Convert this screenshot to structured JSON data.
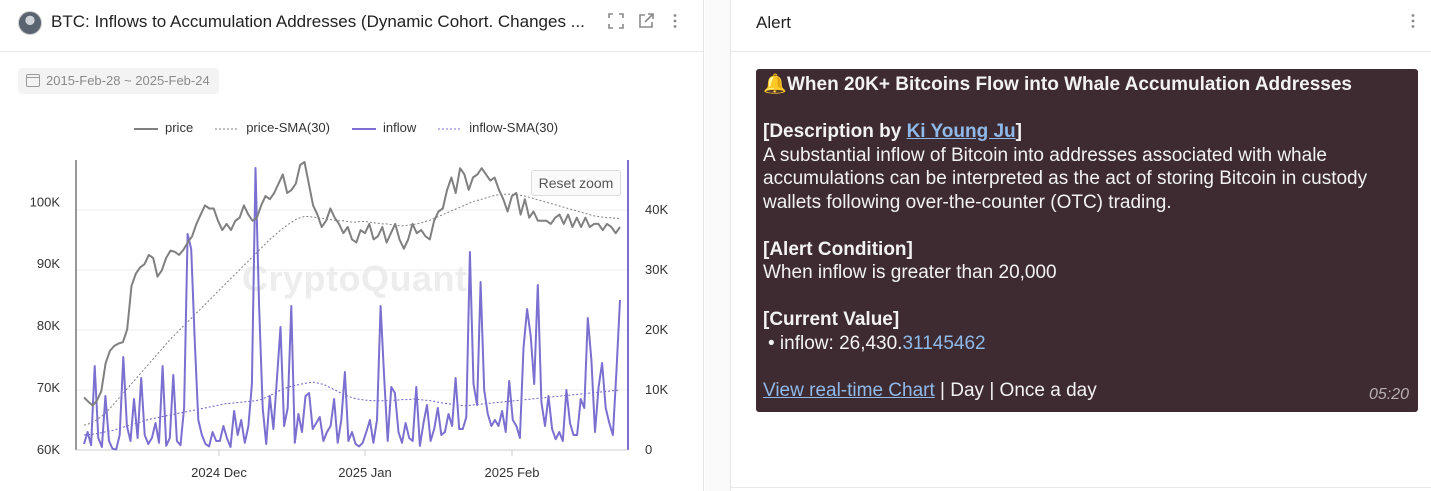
{
  "left_panel": {
    "title": "BTC: Inflows to Accumulation Addresses (Dynamic Cohort. Changes ...",
    "icons": [
      "expand-icon",
      "external-link-icon",
      "more-vertical-icon"
    ],
    "date_range": "2015-Feb-28 ~ 2025-Feb-24",
    "reset_zoom": "Reset zoom",
    "watermark": "CryptoQuant"
  },
  "right_panel": {
    "title": "Alert",
    "message": {
      "heading": "When 20K+ Bitcoins Flow into Whale Accumulation Addresses",
      "desc_prefix": "[Description by ",
      "desc_author": "Ki Young Ju",
      "desc_suffix": "]",
      "desc_lines": [
        "A substantial inflow of Bitcoin into addresses associated with whale",
        "accumulations can be interpreted as the act of storing Bitcoin in custody",
        "wallets following over-the-counter (OTC) trading."
      ],
      "condition_label": "[Alert Condition]",
      "condition_text": "When inflow is greater than 20,000",
      "current_label": "[Current Value]",
      "current_bullet": "• inflow: 26,430.",
      "current_decimals": "31145462",
      "chart_link": "View real-time Chart",
      "schedule": " | Day | Once a day",
      "time": "05:20"
    }
  },
  "colors": {
    "price": "#808080",
    "inflow": "#7b6fd0",
    "alert_bg": "#3e2b32",
    "link": "#8fb9e8"
  },
  "chart_data": {
    "type": "line",
    "title": "",
    "legend": [
      "price",
      "price-SMA(30)",
      "inflow",
      "inflow-SMA(30)"
    ],
    "legend_position": "top",
    "x_ticks": [
      "2024 Dec",
      "2025 Jan",
      "2025 Feb"
    ],
    "y_left": {
      "ticks": [
        "60K",
        "70K",
        "80K",
        "90K",
        "100K"
      ],
      "range": [
        60000,
        106500
      ]
    },
    "y_right": {
      "ticks": [
        "0",
        "10K",
        "20K",
        "30K",
        "40K"
      ],
      "range": [
        0,
        48000
      ]
    },
    "series": [
      {
        "name": "price",
        "axis": "left",
        "values": [
          68500,
          67800,
          67200,
          68000,
          69500,
          74000,
          76000,
          76800,
          77200,
          77400,
          79500,
          86500,
          88500,
          89500,
          90000,
          91500,
          91000,
          88000,
          89000,
          91000,
          92200,
          92000,
          91500,
          92300,
          93500,
          94500,
          96500,
          98000,
          99500,
          99000,
          99000,
          97000,
          95500,
          96500,
          95500,
          97000,
          97500,
          99500,
          98000,
          97000,
          97500,
          99500,
          101000,
          100500,
          101500,
          103000,
          104500,
          101500,
          102000,
          103000,
          106000,
          106500,
          103000,
          99500,
          98000,
          96000,
          97000,
          99000,
          97500,
          96500,
          95000,
          96000,
          94000,
          93500,
          95500,
          95000,
          96500,
          94000,
          94500,
          96000,
          93500,
          95000,
          96500,
          94000,
          92500,
          94000,
          96500,
          95000,
          95500,
          94500,
          94000,
          97000,
          98500,
          99000,
          102000,
          104000,
          101500,
          105500,
          104500,
          102000,
          104000,
          104500,
          105500,
          104500,
          103500,
          104000,
          102000,
          100500,
          98500,
          101000,
          101500,
          98000,
          100500,
          97500,
          98500,
          97000,
          97000,
          97000,
          96500,
          97500,
          98000,
          96500,
          98000,
          96000,
          97500,
          96000,
          97500,
          96000,
          96500,
          96500,
          95500,
          96500,
          96000,
          95000,
          96000
        ]
      },
      {
        "name": "price-SMA(30)",
        "axis": "left",
        "values": [
          64000,
          64200,
          64500,
          64900,
          65400,
          66000,
          66700,
          67500,
          68300,
          69100,
          69900,
          70700,
          71500,
          72300,
          73100,
          73900,
          74700,
          75500,
          76300,
          77100,
          77900,
          78600,
          79300,
          80000,
          80700,
          81400,
          82100,
          82800,
          83500,
          84200,
          84900,
          85600,
          86300,
          87000,
          87700,
          88400,
          89100,
          89800,
          90500,
          91200,
          91900,
          92600,
          93300,
          94000,
          94600,
          95200,
          95800,
          96300,
          96800,
          97200,
          97500,
          97700,
          97700,
          97600,
          97500,
          97400,
          97300,
          97200,
          97100,
          97000,
          97000,
          96900,
          96800,
          96800,
          96900,
          96900,
          96800,
          96700,
          96600,
          96500,
          96500,
          96400,
          96300,
          96200,
          96200,
          96300,
          96400,
          96500,
          96700,
          96900,
          97100,
          97400,
          97700,
          98000,
          98300,
          98600,
          98900,
          99200,
          99500,
          99800,
          100100,
          100300,
          100500,
          100700,
          100900,
          101100,
          101200,
          101300,
          101300,
          101300,
          101200,
          101100,
          101000,
          100800,
          100600,
          100400,
          100200,
          100000,
          99800,
          99600,
          99400,
          99200,
          99000,
          98800,
          98600,
          98400,
          98200,
          98000,
          97800,
          97700,
          97600,
          97500,
          97500,
          97400,
          97400
        ]
      },
      {
        "name": "inflow",
        "axis": "right",
        "values": [
          1000,
          3000,
          800,
          14000,
          2000,
          500,
          9000,
          1500,
          200,
          100,
          2500,
          15500,
          4000,
          1500,
          8500,
          2000,
          12000,
          2500,
          1000,
          2000,
          4500,
          1200,
          14000,
          700,
          2000,
          12500,
          1500,
          800,
          7000,
          36000,
          33500,
          18000,
          5000,
          2500,
          1000,
          600,
          3000,
          1500,
          1500,
          4000,
          2000,
          500,
          6500,
          2500,
          5000,
          1200,
          4000,
          11000,
          47000,
          24000,
          7000,
          1000,
          9000,
          3500,
          12000,
          20500,
          4000,
          7000,
          24000,
          1200,
          6000,
          3000,
          9000,
          9500,
          3500,
          4500,
          5500,
          1500,
          3000,
          4000,
          8500,
          1200,
          5000,
          13000,
          1500,
          3000,
          1000,
          600,
          1200,
          3000,
          5000,
          1200,
          5000,
          24000,
          12000,
          1500,
          10500,
          9500,
          3000,
          1200,
          4500,
          2000,
          1500,
          10500,
          700,
          4500,
          7500,
          1500,
          3500,
          7000,
          2500,
          3000,
          6000,
          4000,
          12000,
          3500,
          3500,
          5500,
          33000,
          11000,
          7500,
          28000,
          10000,
          6000,
          4000,
          5000,
          4000,
          6500,
          3000,
          11500,
          5000,
          4000,
          2000,
          17000,
          23500,
          19000,
          11000,
          27500,
          8000,
          4000,
          9000,
          3500,
          1800,
          3000,
          1500,
          10000,
          4500,
          2500,
          2500,
          8500,
          7000,
          22000,
          15000,
          3000,
          10500,
          14500,
          7000,
          4500,
          2500,
          13000,
          25000
        ]
      },
      {
        "name": "inflow-SMA(30)",
        "axis": "right",
        "values": [
          2500,
          2600,
          2700,
          2900,
          3100,
          3300,
          3600,
          3900,
          4200,
          4500,
          4800,
          5100,
          5300,
          5500,
          5700,
          5900,
          6100,
          6300,
          6500,
          6700,
          6900,
          7100,
          7300,
          7500,
          7700,
          7800,
          7900,
          8000,
          8100,
          8200,
          8400,
          8800,
          9300,
          9800,
          10200,
          10600,
          10800,
          11000,
          11200,
          11300,
          11100,
          10800,
          10300,
          9800,
          9300,
          8900,
          8600,
          8400,
          8300,
          8200,
          8200,
          8200,
          8300,
          8300,
          8400,
          8400,
          8500,
          8400,
          8300,
          8200,
          8000,
          7800,
          7700,
          7500,
          7400,
          7400,
          7500,
          7600,
          7700,
          7800,
          7900,
          8000,
          8100,
          8200,
          8300,
          8400,
          8500,
          8600,
          8700,
          8800,
          8900,
          9000,
          9100,
          9200,
          9300,
          9400,
          9500,
          9600,
          9700,
          9800,
          9900,
          10000
        ]
      }
    ]
  }
}
